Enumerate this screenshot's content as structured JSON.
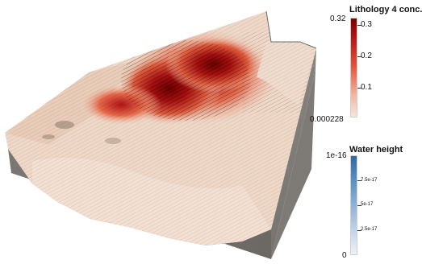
{
  "colors": {
    "terrain_light": "#f2dccd",
    "terrain_mid": "#e7c8b5",
    "rock_top": "#8e8a85",
    "rock_front": "#6e6a66",
    "conc_low": "#f4e3d8",
    "conc_high": "#7a0000",
    "water_low": "#eef2f8",
    "water_high": "#2d67a4"
  },
  "legend_lithology": {
    "title": "Lithology 4 conc.",
    "range_max": "0.32",
    "range_min": "0.000228",
    "ticks": [
      "0.3",
      "0.2",
      "0.1"
    ]
  },
  "legend_water": {
    "title": "Water height",
    "range_max": "1e-16",
    "range_min": "0",
    "ticks": [
      "7.5e-17",
      "5e-17",
      "2.5e-17"
    ]
  }
}
